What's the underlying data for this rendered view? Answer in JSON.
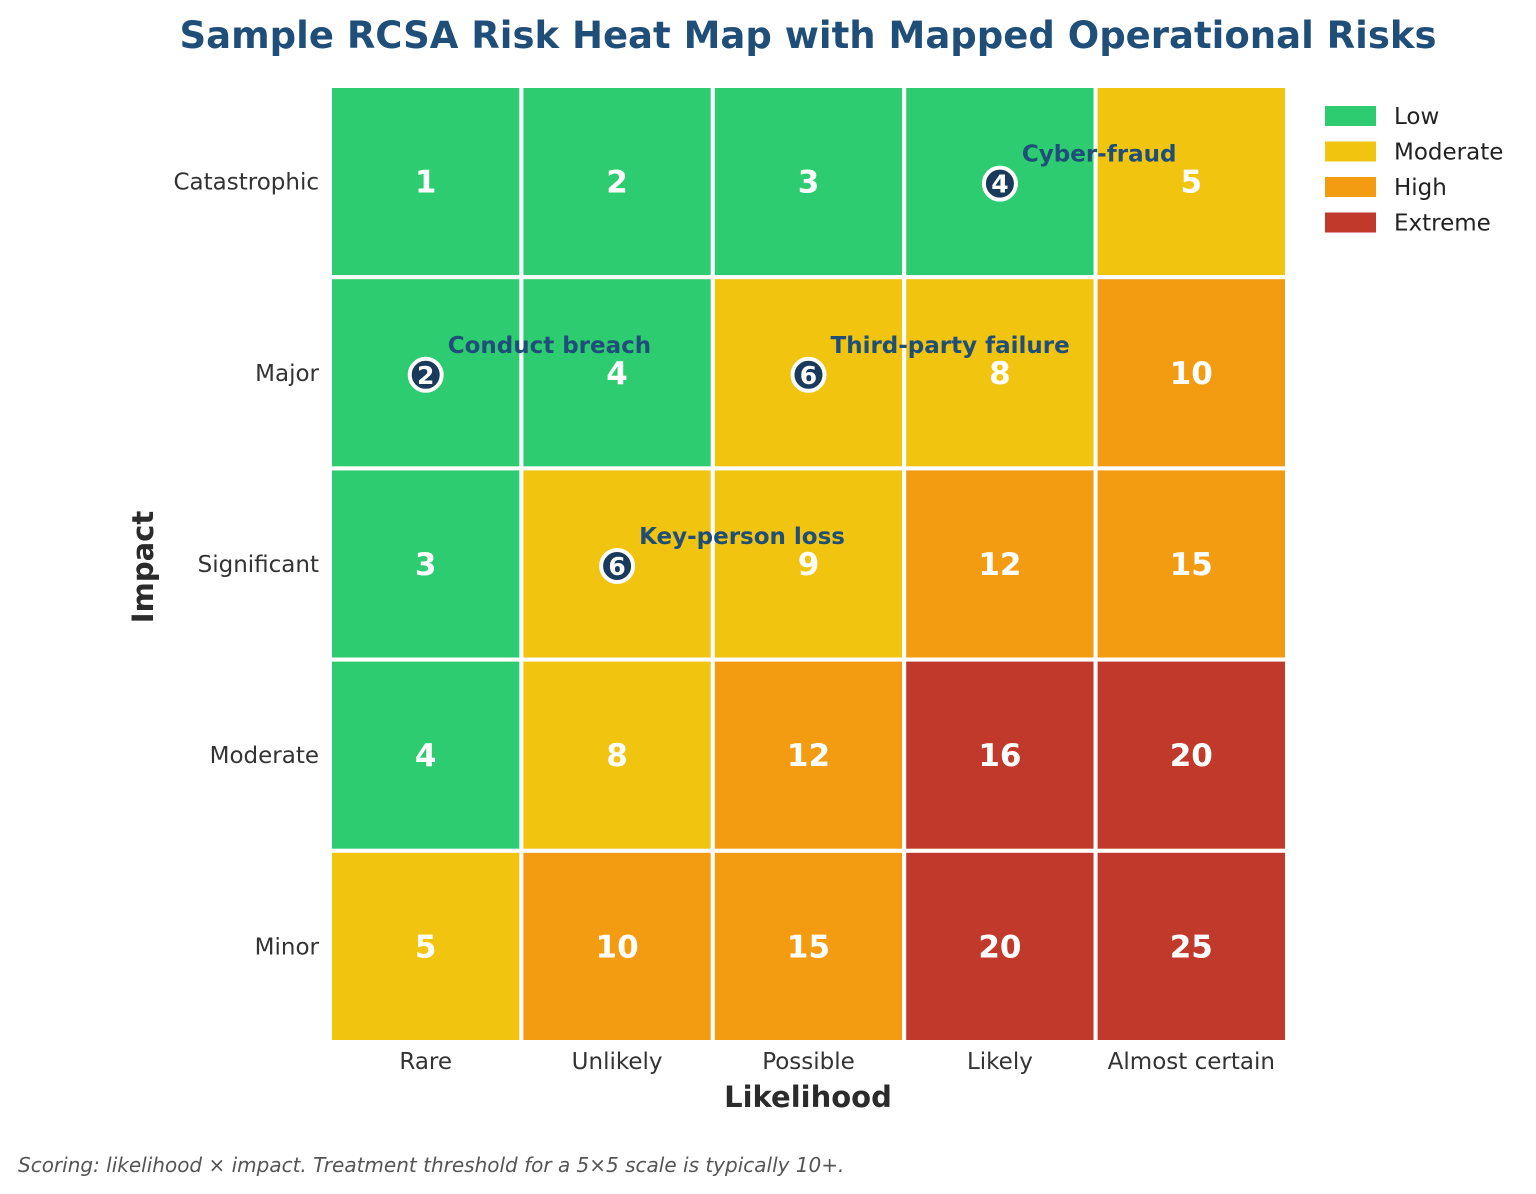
{
  "chart_data": {
    "type": "heatmap",
    "title": "Sample RCSA Risk Heat Map with Mapped Operational Risks",
    "xlabel": "Likelihood",
    "ylabel": "Impact",
    "x_categories": [
      "Rare",
      "Unlikely",
      "Possible",
      "Likely",
      "Almost certain"
    ],
    "y_categories": [
      "Catastrophic",
      "Major",
      "Significant",
      "Moderate",
      "Minor"
    ],
    "scores": [
      [
        1,
        2,
        3,
        4,
        5
      ],
      [
        2,
        4,
        6,
        8,
        10
      ],
      [
        3,
        6,
        9,
        12,
        15
      ],
      [
        4,
        8,
        12,
        16,
        20
      ],
      [
        5,
        10,
        15,
        20,
        25
      ]
    ],
    "bands": [
      [
        0,
        0,
        0,
        0,
        1
      ],
      [
        0,
        0,
        1,
        1,
        2
      ],
      [
        0,
        1,
        1,
        2,
        2
      ],
      [
        0,
        1,
        2,
        3,
        3
      ],
      [
        1,
        2,
        2,
        3,
        3
      ]
    ],
    "legend": {
      "placement": "top-right",
      "entries": [
        {
          "label": "Low",
          "color": "#2ecc71"
        },
        {
          "label": "Moderate",
          "color": "#f1c40f"
        },
        {
          "label": "High",
          "color": "#f39c12"
        },
        {
          "label": "Extreme",
          "color": "#c0392b"
        }
      ]
    },
    "mapped_risks": [
      {
        "name": "Cyber-fraud",
        "likelihood": "Likely",
        "impact": "Catastrophic",
        "score": 4
      },
      {
        "name": "Conduct breach",
        "likelihood": "Rare",
        "impact": "Major",
        "score": 2
      },
      {
        "name": "Third-party failure",
        "likelihood": "Possible",
        "impact": "Major",
        "score": 6
      },
      {
        "name": "Key-person loss",
        "likelihood": "Unlikely",
        "impact": "Significant",
        "score": 6
      }
    ],
    "colors": {
      "title": "#1f4e79",
      "risk_label": "#1f4e79",
      "marker_fill": "#1a3a5c",
      "grid_line": "#ffffff",
      "score_text": "#ffffff"
    }
  },
  "footnote": "Scoring: likelihood × impact. Treatment threshold for a 5×5 scale is typically 10+."
}
